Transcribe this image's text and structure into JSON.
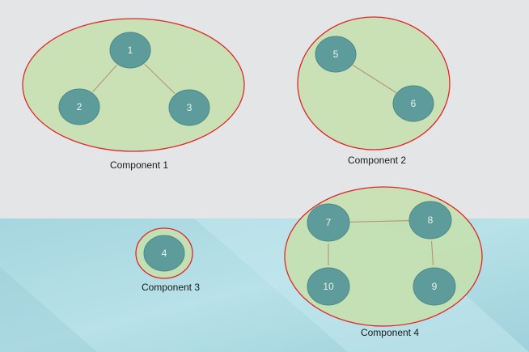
{
  "diagram": {
    "type": "graph-connected-components",
    "colors": {
      "background_top": "#e3e5e7",
      "background_bottom": "#a9d8e1",
      "component_fill": "#c5e0ae",
      "component_border": "#e0262b",
      "node_fill": "#5e9c9c",
      "node_stroke": "#4e8b8b",
      "edge": "#b58c6e",
      "node_text": "#ecf1e6",
      "label_text": "#1b1b1b"
    },
    "components": [
      {
        "id": "c1",
        "label": "Component 1",
        "nodes": [
          "1",
          "2",
          "3"
        ]
      },
      {
        "id": "c2",
        "label": "Component 2",
        "nodes": [
          "5",
          "6"
        ]
      },
      {
        "id": "c3",
        "label": "Component 3",
        "nodes": [
          "4"
        ]
      },
      {
        "id": "c4",
        "label": "Component 4",
        "nodes": [
          "7",
          "8",
          "10",
          "9"
        ]
      }
    ],
    "nodes": [
      {
        "id": "1",
        "label": "1"
      },
      {
        "id": "2",
        "label": "2"
      },
      {
        "id": "3",
        "label": "3"
      },
      {
        "id": "5",
        "label": "5"
      },
      {
        "id": "6",
        "label": "6"
      },
      {
        "id": "4",
        "label": "4"
      },
      {
        "id": "7",
        "label": "7"
      },
      {
        "id": "8",
        "label": "8"
      },
      {
        "id": "10",
        "label": "10"
      },
      {
        "id": "9",
        "label": "9"
      }
    ],
    "edges": [
      {
        "from": "1",
        "to": "2"
      },
      {
        "from": "1",
        "to": "3"
      },
      {
        "from": "5",
        "to": "6"
      },
      {
        "from": "7",
        "to": "8"
      },
      {
        "from": "7",
        "to": "10"
      },
      {
        "from": "8",
        "to": "9"
      }
    ]
  }
}
